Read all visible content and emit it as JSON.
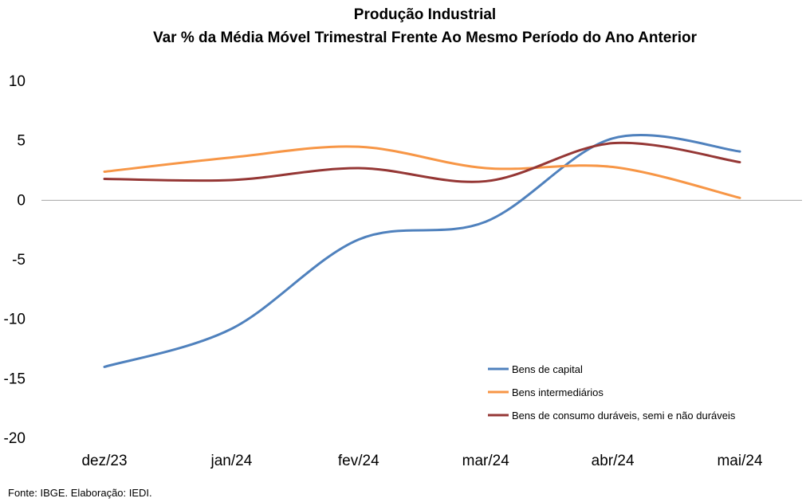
{
  "chart_data": {
    "type": "line",
    "title": "Produção Industrial",
    "subtitle": "Var % da Média Móvel Trimestral Frente Ao Mesmo Período do Ano Anterior",
    "xlabel": "",
    "ylabel": "",
    "categories": [
      "dez/23",
      "jan/24",
      "fev/24",
      "mar/24",
      "abr/24",
      "mai/24"
    ],
    "ylim": [
      -20,
      10
    ],
    "yticks": [
      10,
      5,
      0,
      -5,
      -10,
      -15,
      -20
    ],
    "grid": false,
    "legend_position": "bottom-right",
    "series": [
      {
        "name": "Bens de capital",
        "color": "#4f81bd",
        "values": [
          -14.0,
          -10.8,
          -3.3,
          -1.8,
          5.2,
          4.1
        ]
      },
      {
        "name": "Bens intermediários",
        "color": "#f79646",
        "values": [
          2.4,
          3.6,
          4.5,
          2.7,
          2.8,
          0.2
        ]
      },
      {
        "name": "Bens de consumo duráveis, semi e não duráveis",
        "color": "#953735",
        "values": [
          1.8,
          1.7,
          2.7,
          1.6,
          4.8,
          3.2
        ]
      }
    ]
  },
  "footer": {
    "source": "Fonte: IBGE. Elaboração: IEDI."
  }
}
